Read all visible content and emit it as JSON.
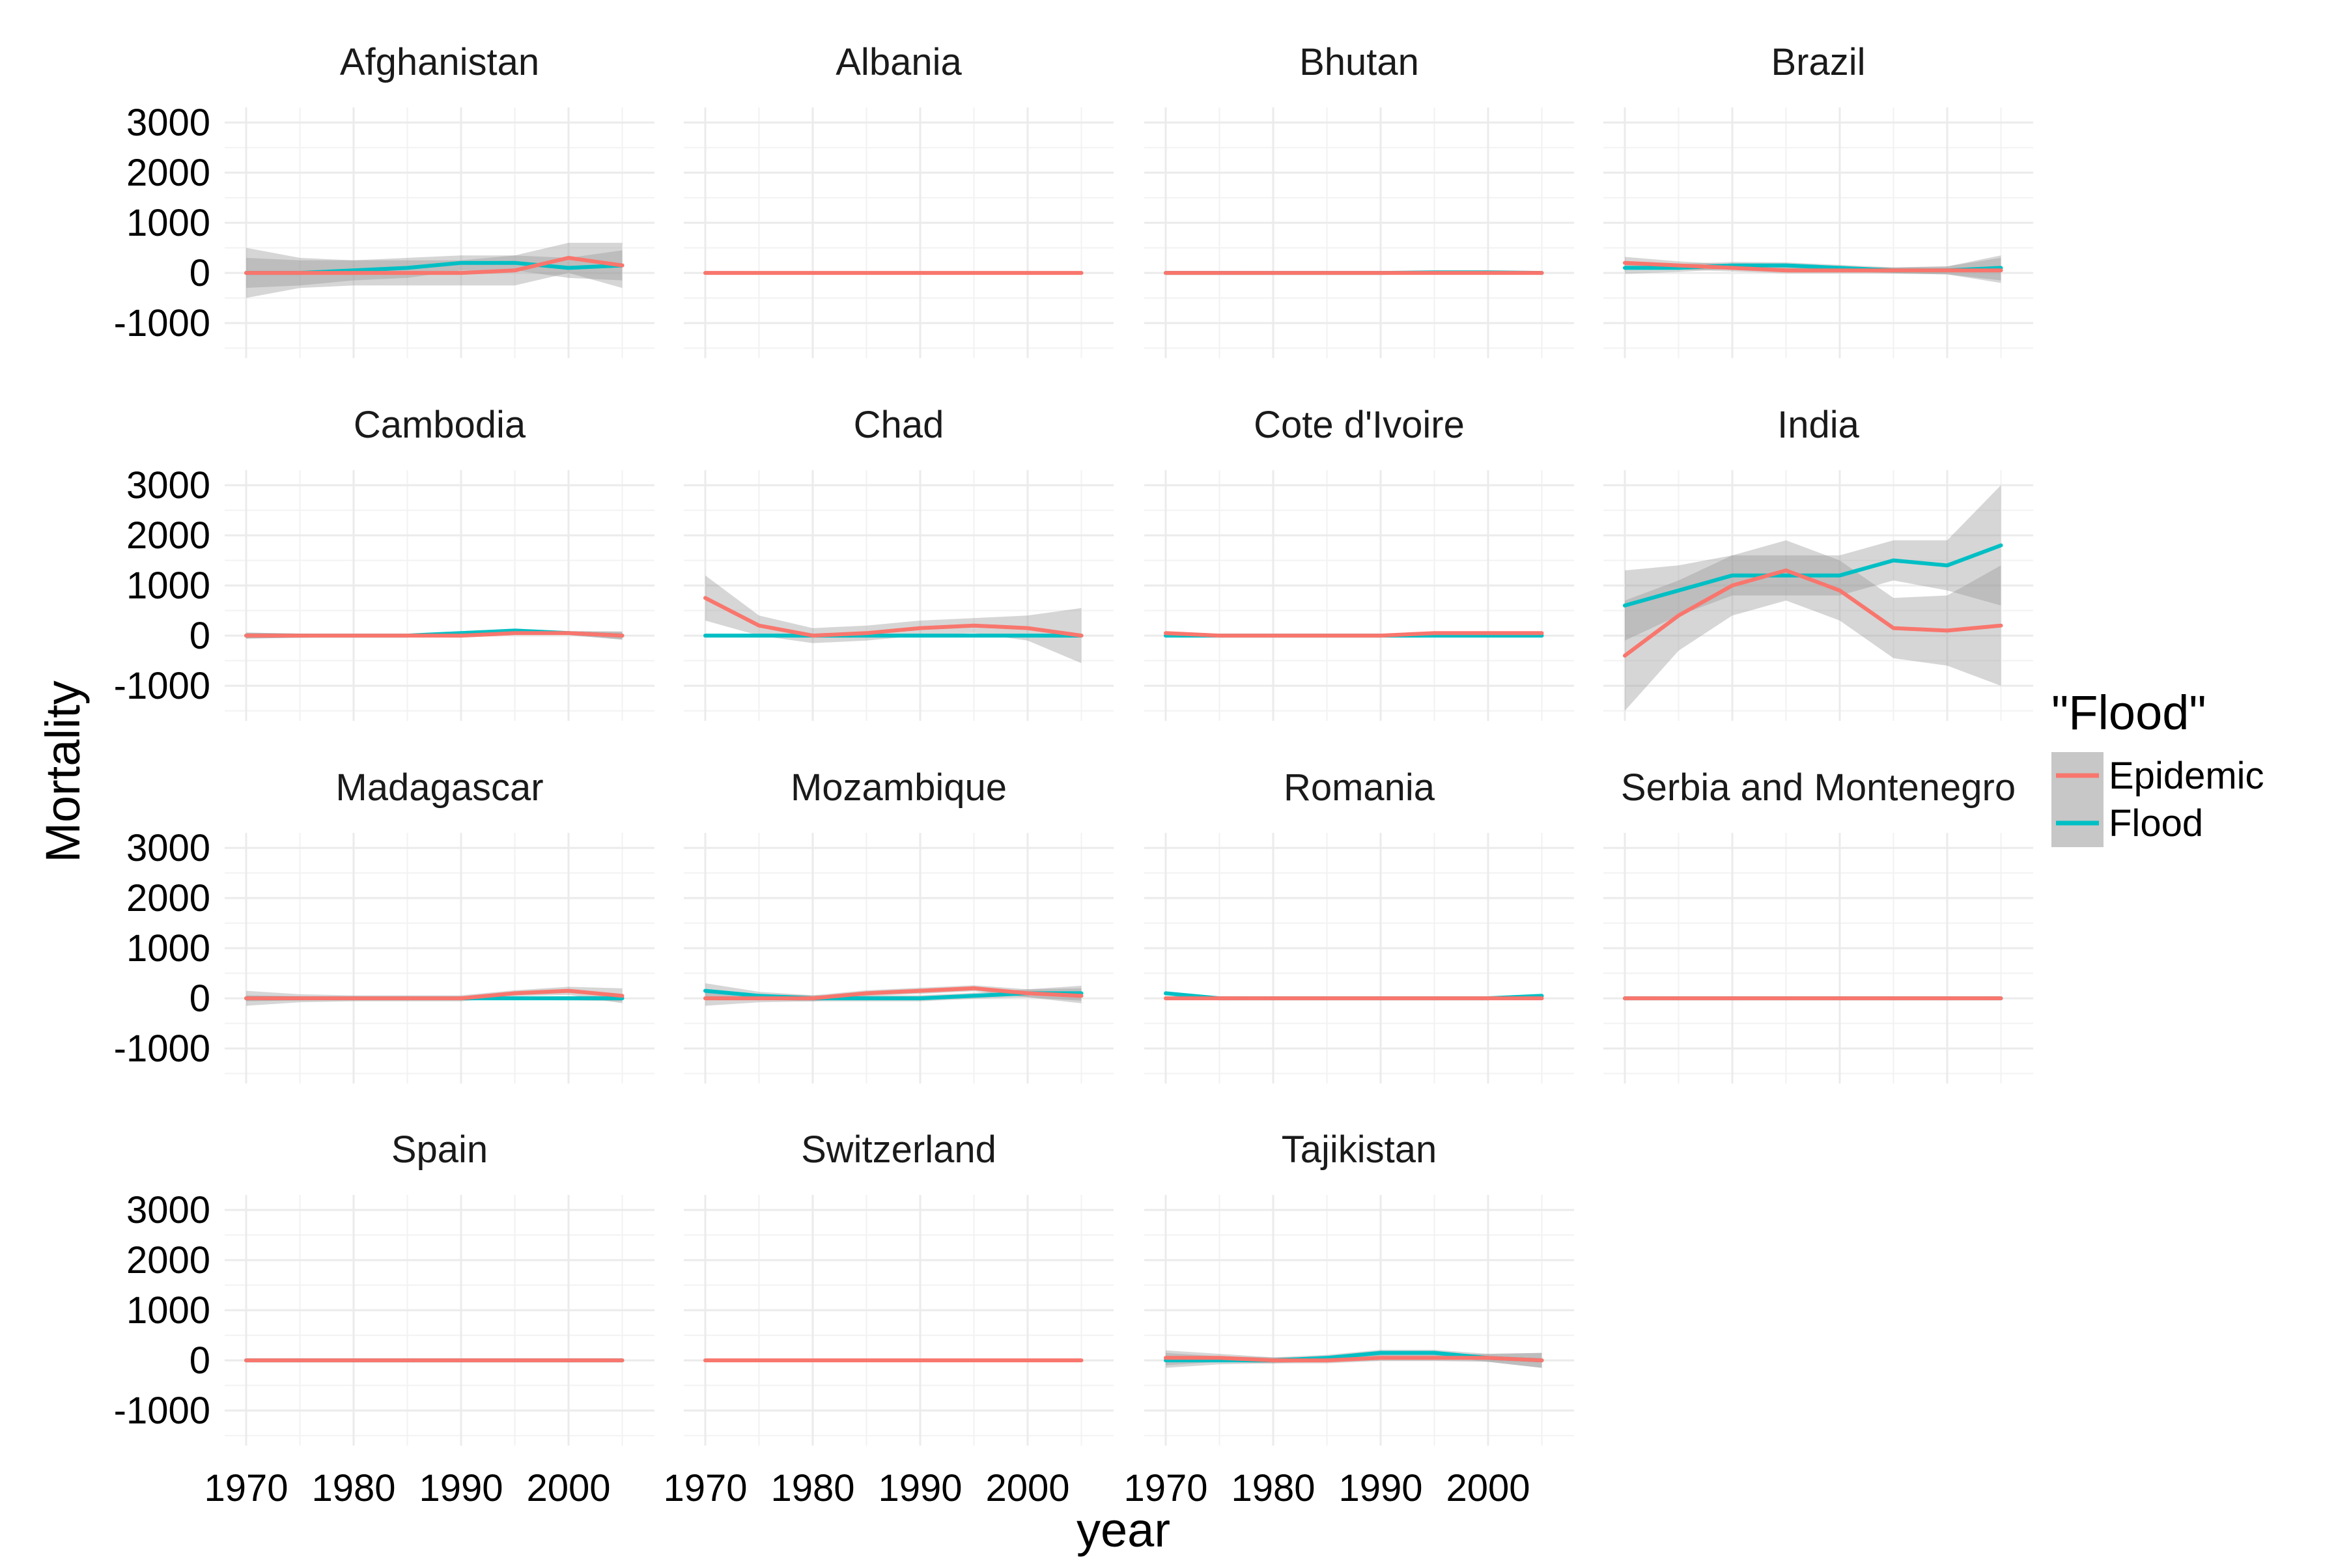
{
  "chart_data": {
    "type": "line",
    "xlabel": "year",
    "ylabel": "Mortality",
    "xlim": [
      1968,
      2008
    ],
    "ylim": [
      -1700,
      3300
    ],
    "x_ticks": [
      1970,
      1980,
      1990,
      2000
    ],
    "x_tick_labels": [
      "1970",
      "1980",
      "1990",
      "2000"
    ],
    "y_ticks": [
      -1000,
      0,
      1000,
      2000,
      3000
    ],
    "y_tick_labels": [
      "-1000",
      "0",
      "1000",
      "2000",
      "3000"
    ],
    "grid": true,
    "legend": {
      "title": "\"Flood\"",
      "position": "right",
      "entries": [
        "Epidemic",
        "Flood"
      ]
    },
    "colors": {
      "Epidemic": "#F8766D",
      "Flood": "#00BFC4",
      "band": "#999999"
    },
    "x": [
      1970,
      1975,
      1980,
      1985,
      1990,
      1995,
      2000,
      2005
    ],
    "panels": [
      {
        "country": "Afghanistan",
        "series": [
          {
            "name": "Epidemic",
            "values": [
              0,
              0,
              0,
              0,
              0,
              50,
              300,
              150
            ],
            "se": [
              500,
              300,
              250,
              250,
              250,
              300,
              300,
              450
            ]
          },
          {
            "name": "Flood",
            "values": [
              0,
              0,
              50,
              100,
              200,
              200,
              100,
              150
            ],
            "se": [
              300,
              250,
              200,
              200,
              150,
              150,
              200,
              300
            ]
          }
        ]
      },
      {
        "country": "Albania",
        "series": [
          {
            "name": "Epidemic",
            "values": [
              0,
              0,
              0,
              0,
              0,
              0,
              0,
              0
            ],
            "se": [
              0,
              0,
              0,
              0,
              0,
              0,
              0,
              0
            ]
          }
        ]
      },
      {
        "country": "Bhutan",
        "series": [
          {
            "name": "Epidemic",
            "values": [
              0,
              0,
              0,
              0,
              0,
              0,
              0,
              0
            ],
            "se": [
              25,
              20,
              20,
              20,
              20,
              20,
              20,
              25
            ]
          },
          {
            "name": "Flood",
            "values": [
              0,
              0,
              0,
              0,
              0,
              10,
              10,
              0
            ],
            "se": [
              20,
              20,
              20,
              20,
              20,
              20,
              20,
              20
            ]
          }
        ]
      },
      {
        "country": "Brazil",
        "series": [
          {
            "name": "Epidemic",
            "values": [
              200,
              150,
              100,
              50,
              50,
              50,
              50,
              50
            ],
            "se": [
              120,
              80,
              70,
              60,
              60,
              60,
              80,
              250
            ]
          },
          {
            "name": "Flood",
            "values": [
              100,
              100,
              150,
              150,
              100,
              50,
              50,
              100
            ],
            "se": [
              120,
              80,
              70,
              60,
              60,
              60,
              80,
              250
            ]
          }
        ]
      },
      {
        "country": "Cambodia",
        "series": [
          {
            "name": "Epidemic",
            "values": [
              0,
              0,
              0,
              0,
              0,
              50,
              50,
              0
            ],
            "se": [
              60,
              40,
              30,
              30,
              40,
              40,
              40,
              80
            ]
          },
          {
            "name": "Flood",
            "values": [
              0,
              0,
              0,
              0,
              50,
              100,
              50,
              0
            ],
            "se": [
              60,
              40,
              30,
              30,
              40,
              40,
              40,
              80
            ]
          }
        ]
      },
      {
        "country": "Chad",
        "series": [
          {
            "name": "Epidemic",
            "values": [
              750,
              200,
              0,
              50,
              150,
              200,
              150,
              0
            ],
            "se": [
              450,
              200,
              150,
              150,
              150,
              150,
              250,
              550
            ]
          },
          {
            "name": "Flood",
            "values": [
              0,
              0,
              0,
              0,
              0,
              0,
              0,
              0
            ],
            "se": [
              0,
              0,
              0,
              0,
              0,
              0,
              0,
              0
            ]
          }
        ]
      },
      {
        "country": "Cote d'Ivoire",
        "series": [
          {
            "name": "Epidemic",
            "values": [
              50,
              0,
              0,
              0,
              0,
              50,
              50,
              50
            ],
            "se": [
              20,
              15,
              15,
              15,
              15,
              15,
              15,
              20
            ]
          },
          {
            "name": "Flood",
            "values": [
              0,
              0,
              0,
              0,
              0,
              0,
              0,
              0
            ],
            "se": [
              0,
              0,
              0,
              0,
              0,
              0,
              0,
              0
            ]
          }
        ]
      },
      {
        "country": "India",
        "series": [
          {
            "name": "Epidemic",
            "values": [
              -400,
              400,
              1000,
              1300,
              900,
              150,
              100,
              200
            ],
            "se": [
              1100,
              700,
              600,
              600,
              600,
              600,
              700,
              1200
            ]
          },
          {
            "name": "Flood",
            "values": [
              600,
              900,
              1200,
              1200,
              1200,
              1500,
              1400,
              1800
            ],
            "se": [
              700,
              500,
              400,
              400,
              400,
              400,
              500,
              1200
            ]
          }
        ]
      },
      {
        "country": "Madagascar",
        "series": [
          {
            "name": "Epidemic",
            "values": [
              0,
              0,
              0,
              0,
              0,
              100,
              150,
              50
            ],
            "se": [
              150,
              80,
              60,
              60,
              60,
              60,
              80,
              150
            ]
          },
          {
            "name": "Flood",
            "values": [
              0,
              0,
              0,
              0,
              0,
              0,
              0,
              0
            ],
            "se": [
              60,
              40,
              30,
              30,
              30,
              30,
              40,
              60
            ]
          }
        ]
      },
      {
        "country": "Mozambique",
        "series": [
          {
            "name": "Epidemic",
            "values": [
              0,
              0,
              0,
              100,
              150,
              200,
              100,
              50
            ],
            "se": [
              150,
              80,
              60,
              60,
              60,
              60,
              80,
              150
            ]
          },
          {
            "name": "Flood",
            "values": [
              150,
              50,
              0,
              0,
              0,
              50,
              100,
              100
            ],
            "se": [
              150,
              80,
              60,
              60,
              60,
              60,
              80,
              150
            ]
          }
        ]
      },
      {
        "country": "Romania",
        "series": [
          {
            "name": "Epidemic",
            "values": [
              0,
              0,
              0,
              0,
              0,
              0,
              0,
              0
            ],
            "se": [
              0,
              0,
              0,
              0,
              0,
              0,
              0,
              0
            ]
          },
          {
            "name": "Flood",
            "values": [
              100,
              0,
              0,
              0,
              0,
              0,
              0,
              50
            ],
            "se": [
              20,
              15,
              10,
              10,
              10,
              10,
              15,
              20
            ]
          }
        ]
      },
      {
        "country": "Serbia and Montenegro",
        "series": [
          {
            "name": "Epidemic",
            "values": [
              0,
              0,
              0,
              0,
              0,
              0,
              0,
              0
            ],
            "se": [
              0,
              0,
              0,
              0,
              0,
              0,
              0,
              0
            ]
          },
          {
            "name": "Flood",
            "values": [
              0,
              0,
              0,
              0,
              0,
              0,
              0,
              0
            ],
            "se": [
              0,
              0,
              0,
              0,
              0,
              0,
              0,
              0
            ]
          }
        ]
      },
      {
        "country": "Spain",
        "series": [
          {
            "name": "Epidemic",
            "values": [
              0,
              0,
              0,
              0,
              0,
              0,
              0,
              0
            ],
            "se": [
              0,
              0,
              0,
              0,
              0,
              0,
              0,
              0
            ]
          },
          {
            "name": "Flood",
            "values": [
              0,
              0,
              0,
              0,
              0,
              0,
              0,
              0
            ],
            "se": [
              0,
              0,
              0,
              0,
              0,
              0,
              0,
              0
            ]
          }
        ]
      },
      {
        "country": "Switzerland",
        "series": [
          {
            "name": "Epidemic",
            "values": [
              0,
              0,
              0,
              0,
              0,
              0,
              0,
              0
            ],
            "se": [
              0,
              0,
              0,
              0,
              0,
              0,
              0,
              0
            ]
          }
        ]
      },
      {
        "country": "Tajikistan",
        "series": [
          {
            "name": "Epidemic",
            "values": [
              50,
              50,
              0,
              0,
              50,
              50,
              50,
              0
            ],
            "se": [
              150,
              80,
              60,
              60,
              60,
              60,
              80,
              150
            ]
          },
          {
            "name": "Flood",
            "values": [
              0,
              0,
              0,
              50,
              150,
              150,
              50,
              0
            ],
            "se": [
              150,
              80,
              60,
              60,
              60,
              60,
              80,
              150
            ]
          }
        ]
      }
    ]
  }
}
